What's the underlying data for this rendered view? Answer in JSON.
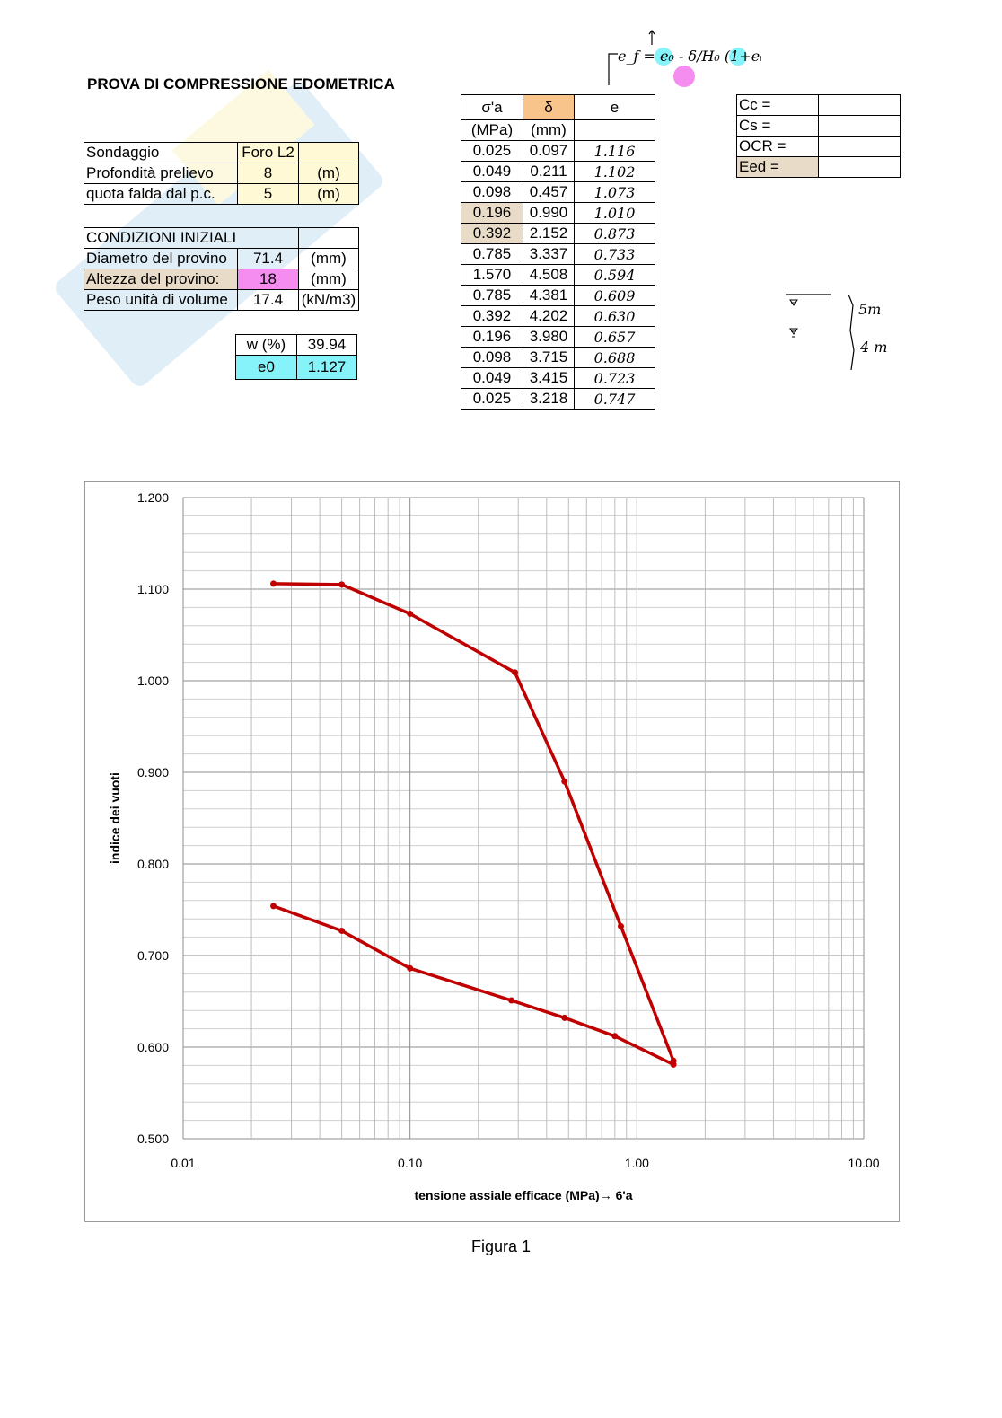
{
  "title": "PROVA DI COMPRESSIONE EDOMETRICA",
  "formula": {
    "text": "e_f = e₀ - δ/H₀ (1+e₀)"
  },
  "sample_info": {
    "rows": [
      {
        "label": "Sondaggio",
        "value": "Foro L2",
        "unit": ""
      },
      {
        "label": "Profondità prelievo",
        "value": "8",
        "unit": "(m)"
      },
      {
        "label": "quota falda dal p.c.",
        "value": "5",
        "unit": "(m)"
      }
    ]
  },
  "initial_conditions": {
    "header": "CONDIZIONI INIZIALI",
    "rows": [
      {
        "label": "Diametro del provino",
        "value": "71.4",
        "unit": "(mm)"
      },
      {
        "label": "Altezza del provino:",
        "value": "18",
        "unit": "(mm)"
      },
      {
        "label": "Peso unità di volume",
        "value": "17.4",
        "unit": "(kN/m3)"
      }
    ],
    "w_label": "w (%)",
    "w_value": "39.94",
    "e0_label": "e0",
    "e0_value": "1.127"
  },
  "test_table": {
    "headers": [
      "σ'a",
      "δ",
      "e"
    ],
    "units": [
      "(MPa)",
      "(mm)",
      ""
    ],
    "rows": [
      [
        "0.025",
        "0.097",
        "1.116"
      ],
      [
        "0.049",
        "0.211",
        "1.102"
      ],
      [
        "0.098",
        "0.457",
        "1.073"
      ],
      [
        "0.196",
        "0.990",
        "1.010"
      ],
      [
        "0.392",
        "2.152",
        "0.873"
      ],
      [
        "0.785",
        "3.337",
        "0.733"
      ],
      [
        "1.570",
        "4.508",
        "0.594"
      ],
      [
        "0.785",
        "4.381",
        "0.609"
      ],
      [
        "0.392",
        "4.202",
        "0.630"
      ],
      [
        "0.196",
        "3.980",
        "0.657"
      ],
      [
        "0.098",
        "3.715",
        "0.688"
      ],
      [
        "0.049",
        "3.415",
        "0.723"
      ],
      [
        "0.025",
        "3.218",
        "0.747"
      ]
    ]
  },
  "results": {
    "rows": [
      {
        "label": "Cc =",
        "value": ""
      },
      {
        "label": "Cs =",
        "value": ""
      },
      {
        "label": "OCR =",
        "value": ""
      },
      {
        "label": "Eed =",
        "value": ""
      }
    ]
  },
  "sketch": {
    "label_top": "5m",
    "label_bottom": "4 m"
  },
  "chart_data": {
    "type": "line",
    "xscale": "log",
    "xlim": [
      0.01,
      10
    ],
    "ylim": [
      0.5,
      1.2
    ],
    "xticks": [
      "0.01",
      "0.10",
      "1.00",
      "10.00"
    ],
    "yticks": [
      "0.500",
      "0.600",
      "0.700",
      "0.800",
      "0.900",
      "1.000",
      "1.100",
      "1.200"
    ],
    "xlabel": "tensione assiale  efficace  (MPa)→ 6'a",
    "ylabel": "indice dei vuoti",
    "grid": true,
    "color": "#c00000",
    "series": [
      {
        "x": [
          0.025,
          0.05,
          0.1,
          0.29,
          0.48,
          0.85,
          1.45
        ],
        "y": [
          1.106,
          1.105,
          1.073,
          1.009,
          0.89,
          0.732,
          0.585
        ]
      },
      {
        "x": [
          1.45,
          0.8,
          0.48,
          0.28,
          0.1,
          0.05,
          0.025
        ],
        "y": [
          0.581,
          0.612,
          0.632,
          0.651,
          0.686,
          0.727,
          0.754
        ]
      }
    ]
  },
  "caption": "Figura 1"
}
